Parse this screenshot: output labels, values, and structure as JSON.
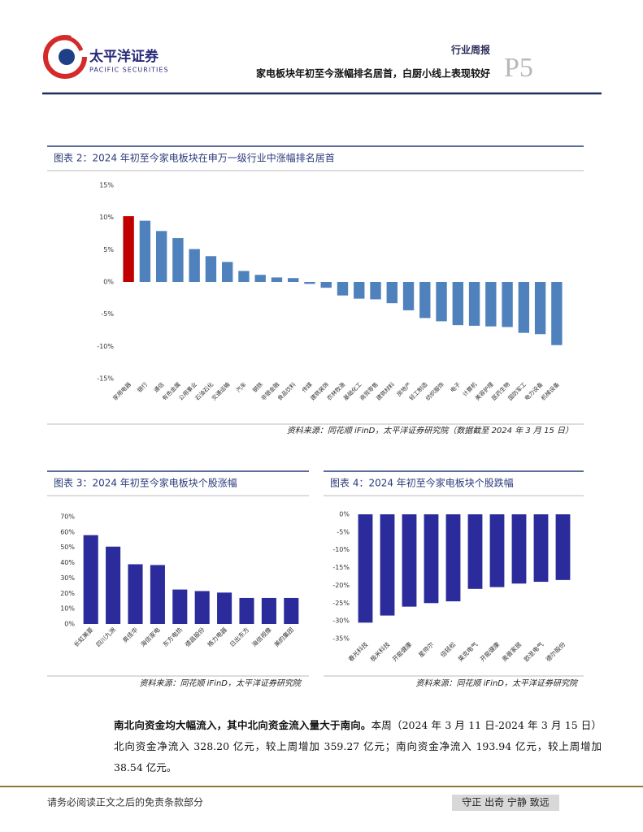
{
  "header": {
    "company": "太平洋证券",
    "company_en": "PACIFIC SECURITIES",
    "report_type": "行业周报",
    "subtitle": "家电板块年初至今涨幅排名居首，白厨小线上表现较好",
    "page": "P5"
  },
  "charts": [
    {
      "type": "bar",
      "title": "图表 2：2024 年初至今家电板块在申万一级行业中涨幅排名居首",
      "source": "资料来源：同花顺 iFinD，太平洋证券研究院（数据截至 2024 年 3 月 15 日）",
      "categories": [
        "家用电器",
        "银行",
        "通信",
        "有色金属",
        "公用事业",
        "石油石化",
        "交通运输",
        "汽车",
        "钢铁",
        "非银金融",
        "食品饮料",
        "传媒",
        "建筑装饰",
        "农林牧渔",
        "基础化工",
        "商贸零售",
        "建筑材料",
        "房地产",
        "轻工制造",
        "纺织服饰",
        "电子",
        "计算机",
        "美容护理",
        "医药生物",
        "国防军工",
        "电力设备",
        "机械设备"
      ],
      "values": [
        10.2,
        9.5,
        7.9,
        6.8,
        5.1,
        4.0,
        3.1,
        1.7,
        1.1,
        0.7,
        0.6,
        -0.3,
        -0.9,
        -2.1,
        -2.6,
        -2.7,
        -3.3,
        -4.4,
        -5.6,
        -6.1,
        -6.7,
        -6.8,
        -6.9,
        -7.0,
        -7.9,
        -8.1,
        -9.8
      ],
      "colors": [
        "#c00000",
        "#4f81bd",
        "#4f81bd",
        "#4f81bd",
        "#4f81bd",
        "#4f81bd",
        "#4f81bd",
        "#4f81bd",
        "#4f81bd",
        "#4f81bd",
        "#4f81bd",
        "#4f81bd",
        "#4f81bd",
        "#4f81bd",
        "#4f81bd",
        "#4f81bd",
        "#4f81bd",
        "#4f81bd",
        "#4f81bd",
        "#4f81bd",
        "#4f81bd",
        "#4f81bd",
        "#4f81bd",
        "#4f81bd",
        "#4f81bd",
        "#4f81bd",
        "#4f81bd"
      ],
      "ylim": [
        -15,
        15
      ],
      "yticks": [
        {
          "value": 15,
          "label": "15%"
        },
        {
          "value": 10,
          "label": "10%"
        },
        {
          "value": 5,
          "label": "5%"
        },
        {
          "value": 0,
          "label": "0%"
        },
        {
          "value": -5,
          "label": "-5%"
        },
        {
          "value": -10,
          "label": "-10%"
        },
        {
          "value": -15,
          "label": "-15%"
        }
      ]
    },
    {
      "type": "bar",
      "title": "图表 3：2024 年初至今家电板块个股涨幅",
      "source": "资料来源：同花顺 iFinD，太平洋证券研究院",
      "categories": [
        "长虹美菱",
        "四川九洲",
        "奥佳华",
        "海信家电",
        "东方电热",
        "德昌股份",
        "格力电器",
        "日出东方",
        "海信视像",
        "美的集团"
      ],
      "values": [
        58,
        50.5,
        39,
        38.5,
        22.5,
        21.5,
        20.5,
        17,
        17,
        17
      ],
      "color": "#2b2b9c",
      "ylim": [
        0,
        70
      ],
      "yticks": [
        {
          "value": 0,
          "label": "0%"
        },
        {
          "value": 10,
          "label": "10%"
        },
        {
          "value": 20,
          "label": "20%"
        },
        {
          "value": 30,
          "label": "30%"
        },
        {
          "value": 40,
          "label": "40%"
        },
        {
          "value": 50,
          "label": "50%"
        },
        {
          "value": 60,
          "label": "60%"
        },
        {
          "value": 70,
          "label": "70%"
        }
      ]
    },
    {
      "type": "bar",
      "title": "图表 4：2024 年初至今家电板块个股跌幅",
      "source": "资料来源：同花顺 iFinD，太平洋证券研究院",
      "categories": [
        "春光科技",
        "极米科技",
        "开能健康",
        "星帅尔",
        "倍轻松",
        "莱克电气",
        "开能健康",
        "奥普家居",
        "欧圣电气",
        "德尔股份"
      ],
      "values": [
        -30.5,
        -28.5,
        -26,
        -25,
        -24.5,
        -21,
        -20.5,
        -19.5,
        -19,
        -18.5
      ],
      "color": "#2b2b9c",
      "ylim": [
        -35,
        0
      ],
      "yticks": [
        {
          "value": 0,
          "label": "0%"
        },
        {
          "value": -5,
          "label": "-5%"
        },
        {
          "value": -10,
          "label": "-10%"
        },
        {
          "value": -15,
          "label": "-15%"
        },
        {
          "value": -20,
          "label": "-20%"
        },
        {
          "value": -25,
          "label": "-25%"
        },
        {
          "value": -30,
          "label": "-30%"
        },
        {
          "value": -35,
          "label": "-35%"
        }
      ]
    }
  ],
  "paragraph": {
    "lead": "南北向资金均大幅流入，其中北向资金流入量大于南向。",
    "body": "本周（2024 年 3 月 11 日-2024 年 3 月 15 日）北向资金净流入 328.20 亿元，较上周增加 359.27 亿元；南向资金净流入 193.94 亿元，较上周增加 38.54 亿元。"
  },
  "footer": {
    "disclaimer": "请务必阅读正文之后的免责条款部分",
    "motto": "守正 出奇 宁静 致远"
  }
}
